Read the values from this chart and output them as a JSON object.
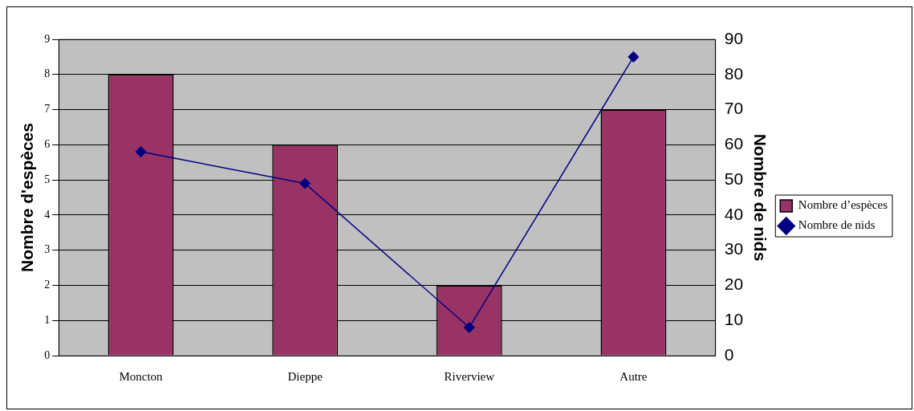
{
  "chart_data": {
    "type": "bar",
    "categories": [
      "Moncton",
      "Dieppe",
      "Riverview",
      "Autre"
    ],
    "ylabel": "Nombre d'espèces",
    "y2label": "Nombre de nids",
    "series": [
      {
        "name": "Nombre d’espèces",
        "color": "#993366",
        "values": [
          8,
          6,
          2,
          7
        ]
      },
      {
        "name": "Nombre de nids",
        "type": "line",
        "axis": "y2",
        "color": "#000080",
        "values": [
          58,
          49,
          8,
          85
        ]
      }
    ],
    "ylim": [
      0,
      9
    ],
    "yticks": [
      0,
      1,
      2,
      3,
      4,
      5,
      6,
      7,
      8,
      9
    ],
    "y2lim": [
      0,
      90
    ],
    "y2ticks": [
      0,
      10,
      20,
      30,
      40,
      50,
      60,
      70,
      80,
      90
    ],
    "grid": "y",
    "legend": "right",
    "marker": "diamond",
    "line_style": "solid"
  }
}
